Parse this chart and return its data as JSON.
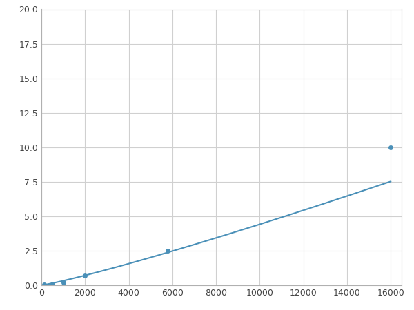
{
  "x": [
    125,
    500,
    1000,
    2000,
    5800,
    16000
  ],
  "y": [
    0.05,
    0.12,
    0.18,
    0.7,
    2.5,
    10.0
  ],
  "line_color": "#4a90b8",
  "marker_color": "#4a90b8",
  "marker_size": 4,
  "marker_style": "o",
  "xlim": [
    0,
    16500
  ],
  "ylim": [
    0,
    20.0
  ],
  "xticks": [
    0,
    2000,
    4000,
    6000,
    8000,
    10000,
    12000,
    14000,
    16000
  ],
  "yticks": [
    0.0,
    2.5,
    5.0,
    7.5,
    10.0,
    12.5,
    15.0,
    17.5,
    20.0
  ],
  "grid": true,
  "background_color": "#ffffff",
  "figure_bg": "#ffffff",
  "power_a": 1.22e-05,
  "power_b": 1.55
}
